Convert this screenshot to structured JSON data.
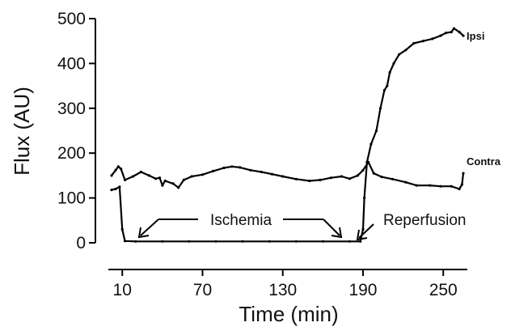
{
  "chart_data": {
    "type": "line",
    "title": "",
    "xlabel": "Time (min)",
    "ylabel": "Flux (AU)",
    "xlim": [
      2,
      268
    ],
    "ylim": [
      0,
      500
    ],
    "xticks": [
      10,
      70,
      130,
      190,
      250
    ],
    "yticks": [
      0,
      100,
      200,
      300,
      400,
      500
    ],
    "grid": false,
    "legend": "none (series labelled at right end of lines)",
    "series": [
      {
        "name": "Ipsi",
        "points": [
          [
            2,
            118
          ],
          [
            5,
            120
          ],
          [
            8,
            125
          ],
          [
            10,
            30
          ],
          [
            12,
            4
          ],
          [
            20,
            3
          ],
          [
            40,
            3
          ],
          [
            60,
            3
          ],
          [
            80,
            3
          ],
          [
            100,
            3
          ],
          [
            120,
            3
          ],
          [
            140,
            3
          ],
          [
            160,
            3
          ],
          [
            180,
            3
          ],
          [
            188,
            3
          ],
          [
            190,
            30
          ],
          [
            191,
            100
          ],
          [
            193,
            180
          ],
          [
            196,
            220
          ],
          [
            200,
            250
          ],
          [
            203,
            300
          ],
          [
            206,
            340
          ],
          [
            208,
            350
          ],
          [
            210,
            380
          ],
          [
            213,
            400
          ],
          [
            217,
            420
          ],
          [
            222,
            430
          ],
          [
            228,
            445
          ],
          [
            235,
            450
          ],
          [
            242,
            455
          ],
          [
            248,
            462
          ],
          [
            252,
            468
          ],
          [
            256,
            470
          ],
          [
            258,
            478
          ],
          [
            262,
            470
          ],
          [
            265,
            462
          ]
        ]
      },
      {
        "name": "Contra",
        "points": [
          [
            2,
            150
          ],
          [
            5,
            162
          ],
          [
            7,
            170
          ],
          [
            9,
            165
          ],
          [
            12,
            140
          ],
          [
            18,
            148
          ],
          [
            24,
            158
          ],
          [
            30,
            150
          ],
          [
            35,
            143
          ],
          [
            38,
            145
          ],
          [
            40,
            128
          ],
          [
            42,
            138
          ],
          [
            48,
            132
          ],
          [
            52,
            123
          ],
          [
            56,
            140
          ],
          [
            62,
            148
          ],
          [
            70,
            152
          ],
          [
            78,
            160
          ],
          [
            86,
            167
          ],
          [
            92,
            170
          ],
          [
            98,
            168
          ],
          [
            106,
            162
          ],
          [
            114,
            158
          ],
          [
            122,
            153
          ],
          [
            130,
            148
          ],
          [
            140,
            142
          ],
          [
            150,
            138
          ],
          [
            158,
            140
          ],
          [
            166,
            145
          ],
          [
            174,
            148
          ],
          [
            180,
            143
          ],
          [
            186,
            150
          ],
          [
            190,
            162
          ],
          [
            194,
            180
          ],
          [
            198,
            155
          ],
          [
            204,
            147
          ],
          [
            212,
            142
          ],
          [
            222,
            135
          ],
          [
            230,
            128
          ],
          [
            240,
            128
          ],
          [
            248,
            126
          ],
          [
            256,
            126
          ],
          [
            262,
            120
          ],
          [
            264,
            130
          ],
          [
            265,
            155
          ]
        ]
      }
    ],
    "annotations": {
      "ischemia": "Ischemia",
      "reperfusion": "Reperfusion"
    }
  },
  "colors": {
    "line": "#000000",
    "axis": "#000000"
  }
}
